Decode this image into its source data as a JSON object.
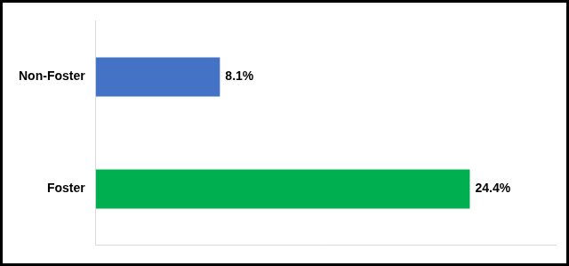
{
  "chart_data": {
    "type": "bar",
    "orientation": "horizontal",
    "categories": [
      "Non-Foster",
      "Foster"
    ],
    "values": [
      8.1,
      24.4
    ],
    "value_labels": [
      "8.1%",
      "24.4%"
    ],
    "colors": [
      "#4472c4",
      "#00b050"
    ],
    "xlim": [
      0,
      30
    ],
    "grid": false,
    "data_labels": true,
    "tick_labels": "y"
  }
}
